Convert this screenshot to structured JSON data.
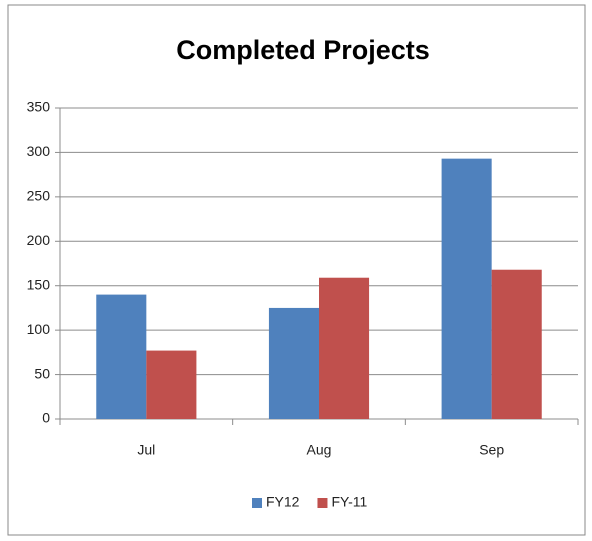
{
  "chart_data": {
    "type": "bar",
    "title": "Completed Projects",
    "categories": [
      "Jul",
      "Aug",
      "Sep"
    ],
    "series": [
      {
        "name": "FY12",
        "color": "#4f81bd",
        "values": [
          140,
          125,
          293
        ]
      },
      {
        "name": "FY-11",
        "color": "#c0504d",
        "values": [
          77,
          159,
          168
        ]
      }
    ],
    "ylim": [
      0,
      350
    ],
    "yticks": [
      0,
      50,
      100,
      150,
      200,
      250,
      300,
      350
    ],
    "grid": true,
    "legend": "bottom"
  }
}
